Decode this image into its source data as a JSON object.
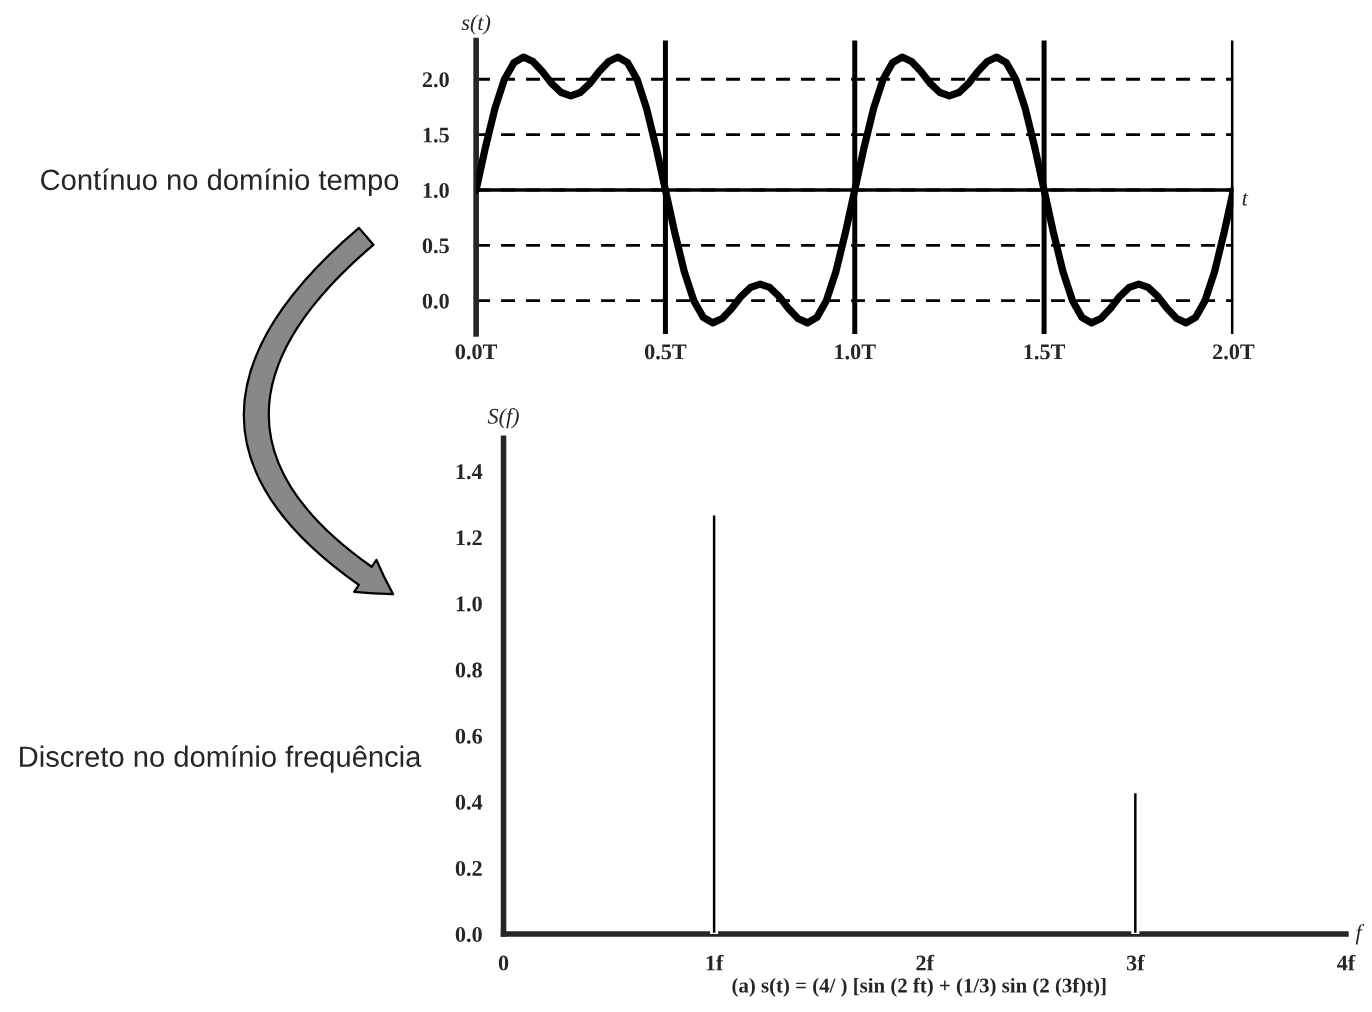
{
  "chart_data": [
    {
      "type": "line",
      "ylabel": "s(t)",
      "xlabel": "t",
      "annotations": [
        "Contínuo no domínio tempo"
      ],
      "series": [
        {
          "color": "#000000",
          "x": [
            0,
            0.025,
            0.05,
            0.075,
            0.1,
            0.125,
            0.15,
            0.175,
            0.2,
            0.225,
            0.25,
            0.275,
            0.3,
            0.325,
            0.35,
            0.375,
            0.4,
            0.425,
            0.45,
            0.475,
            0.5,
            0.525,
            0.55,
            0.575,
            0.6,
            0.625,
            0.65,
            0.675,
            0.7,
            0.725,
            0.75,
            0.775,
            0.8,
            0.825,
            0.85,
            0.875,
            0.9,
            0.925,
            0.95,
            0.975,
            1.0,
            1.025,
            1.05,
            1.075,
            1.1,
            1.125,
            1.15,
            1.175,
            1.2,
            1.225,
            1.25,
            1.275,
            1.3,
            1.325,
            1.35,
            1.375,
            1.4,
            1.425,
            1.45,
            1.475,
            1.5,
            1.525,
            1.55,
            1.575,
            1.6,
            1.625,
            1.65,
            1.675,
            1.7,
            1.725,
            1.75,
            1.775,
            1.8,
            1.825,
            1.85,
            1.875,
            1.9,
            1.925,
            1.95,
            1.975,
            2.0
          ],
          "values": [
            1.0,
            1.39,
            1.74,
            2.0,
            2.15,
            2.2,
            2.16,
            2.07,
            1.96,
            1.88,
            1.85,
            1.88,
            1.96,
            2.07,
            2.16,
            2.2,
            2.15,
            2.0,
            1.74,
            1.39,
            1.0,
            0.61,
            0.26,
            0.0,
            -0.15,
            -0.2,
            -0.16,
            -0.07,
            0.04,
            0.12,
            0.15,
            0.12,
            0.04,
            -0.07,
            -0.16,
            -0.2,
            -0.15,
            0.0,
            0.26,
            0.61,
            1.0,
            1.39,
            1.74,
            2.0,
            2.15,
            2.2,
            2.16,
            2.07,
            1.96,
            1.88,
            1.85,
            1.88,
            1.96,
            2.07,
            2.16,
            2.2,
            2.15,
            2.0,
            1.74,
            1.39,
            1.0,
            0.61,
            0.26,
            0.0,
            -0.15,
            -0.2,
            -0.16,
            -0.07,
            0.04,
            0.12,
            0.15,
            0.12,
            0.04,
            -0.07,
            -0.16,
            -0.2,
            -0.15,
            0.0,
            0.26,
            0.61,
            1.0
          ]
        }
      ],
      "xlim": [
        0,
        2
      ],
      "ylim": [
        -0.3,
        2.35
      ],
      "xticks": [
        {
          "value": 0,
          "label": "0.0T"
        },
        {
          "value": 0.5,
          "label": "0.5T"
        },
        {
          "value": 1,
          "label": "1.0T"
        },
        {
          "value": 1.5,
          "label": "1.5T"
        },
        {
          "value": 2,
          "label": "2.0T"
        }
      ],
      "yticks": [
        {
          "value": 0,
          "label": "0.0"
        },
        {
          "value": 0.5,
          "label": "0.5"
        },
        {
          "value": 1,
          "label": "1.0"
        },
        {
          "value": 1.5,
          "label": "1.5"
        },
        {
          "value": 2,
          "label": "2.0"
        }
      ],
      "ref_lines": [
        {
          "axis": "y",
          "value": 1,
          "line_style": "solid",
          "color": "#000000"
        }
      ],
      "grid": true,
      "line_style": "solid"
    },
    {
      "type": "bar",
      "ylabel": "S(f)",
      "xlabel": "f",
      "annotations": [
        "Discreto no domínio frequência",
        "(a) s(t) = (4/ ) [sin (2 ft) + (1/3) sin (2 (3f)t)]"
      ],
      "x": [
        1,
        3
      ],
      "values": [
        1.27,
        0.43
      ],
      "color": "#000000",
      "xlim": [
        0,
        4
      ],
      "ylim": [
        0,
        1.5
      ],
      "xticks": [
        0,
        {
          "value": 1,
          "label": "1f"
        },
        {
          "value": 2,
          "label": "2f"
        },
        {
          "value": 3,
          "label": "3f"
        },
        {
          "value": 4,
          "label": "4f"
        }
      ],
      "yticks": [
        {
          "value": 0,
          "label": "0.0"
        },
        0.2,
        0.4,
        0.6,
        0.8,
        {
          "value": 1,
          "label": "1.0"
        },
        1.2,
        1.4
      ]
    }
  ]
}
